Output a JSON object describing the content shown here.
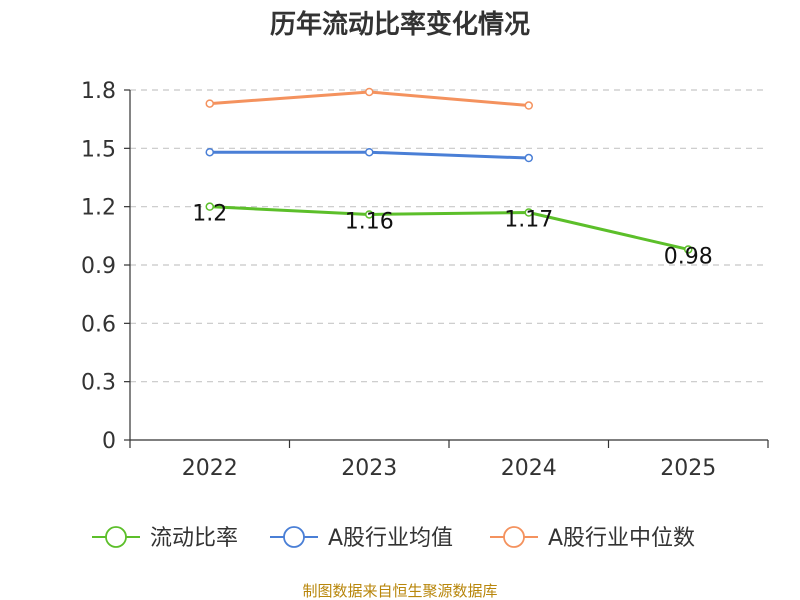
{
  "chart_data": {
    "type": "line",
    "title": "历年流动比率变化情况",
    "categories": [
      "2022",
      "2023",
      "2024",
      "2025"
    ],
    "y_ticks": [
      "0",
      "0.3",
      "0.6",
      "0.9",
      "1.2",
      "1.5",
      "1.8"
    ],
    "ylim": [
      0,
      1.8
    ],
    "grid": true,
    "legend_position": "bottom",
    "series": [
      {
        "name": "流动比率",
        "color": "#5cbf2a",
        "values": [
          1.2,
          1.16,
          1.17,
          0.98
        ],
        "labels": [
          "1.2",
          "1.16",
          "1.17",
          "0.98"
        ]
      },
      {
        "name": "A股行业均值",
        "color": "#4a7fd6",
        "values": [
          1.48,
          1.48,
          1.45,
          null
        ]
      },
      {
        "name": "A股行业中位数",
        "color": "#f4925e",
        "values": [
          1.73,
          1.79,
          1.72,
          null
        ]
      }
    ]
  },
  "source": "制图数据来自恒生聚源数据库"
}
